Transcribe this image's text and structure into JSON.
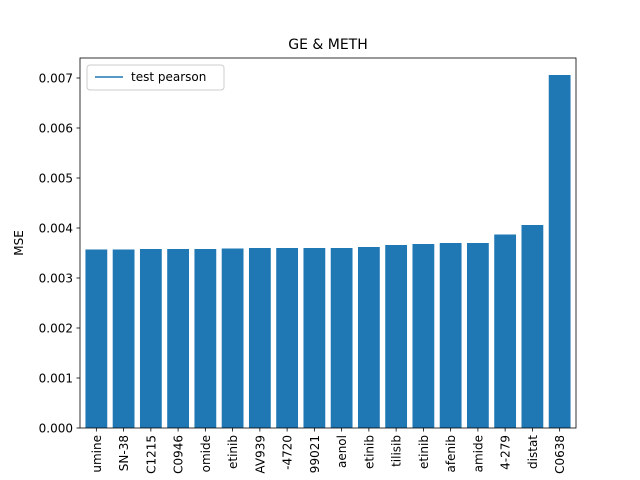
{
  "chart_data": {
    "type": "bar",
    "title": "GE & METH",
    "xlabel": "",
    "ylabel": "MSE",
    "ylim": [
      0,
      0.0074
    ],
    "yticks": [
      "0.000",
      "0.001",
      "0.002",
      "0.003",
      "0.004",
      "0.005",
      "0.006",
      "0.007"
    ],
    "ytick_values": [
      0,
      0.001,
      0.002,
      0.003,
      0.004,
      0.005,
      0.006,
      0.007
    ],
    "categories": [
      "umine",
      "SN-38",
      "C1215",
      "C0946",
      "omide",
      "etinib",
      "AV939",
      "-4720",
      "99021",
      "aenol",
      "etinib",
      "tilisib",
      "etinib",
      "afenib",
      "amide",
      "4-279",
      "distat",
      "C0638"
    ],
    "values": [
      0.00357,
      0.00357,
      0.00358,
      0.00358,
      0.00358,
      0.00359,
      0.0036,
      0.0036,
      0.0036,
      0.0036,
      0.00362,
      0.00366,
      0.00368,
      0.0037,
      0.0037,
      0.00387,
      0.00406,
      0.00706
    ],
    "legend": {
      "entries": [
        "test pearson"
      ],
      "placement": "top-left"
    },
    "grid": false,
    "colors": {
      "bar": "#1f77b4",
      "legend_line": "#1f77b4",
      "axis": "#000000"
    }
  }
}
